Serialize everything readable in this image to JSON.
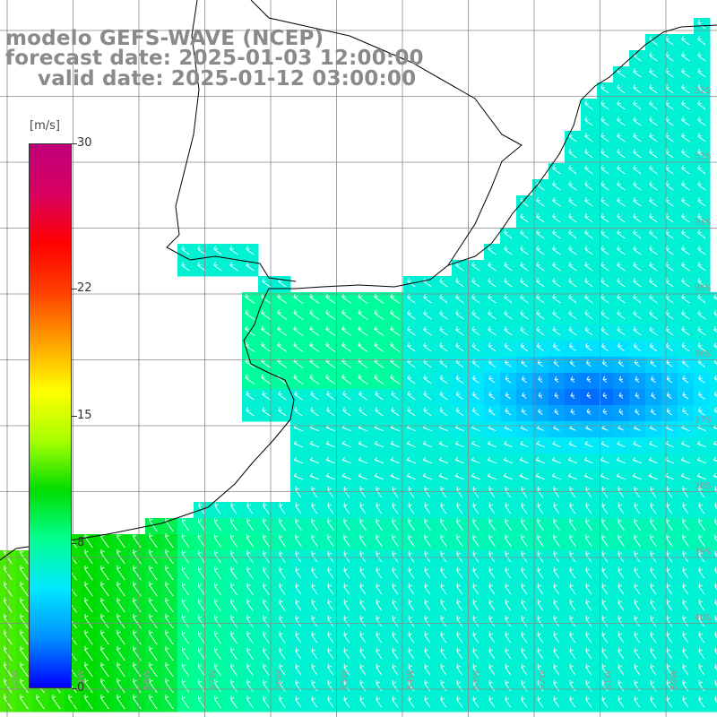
{
  "title": {
    "line1": "modelo GEFS-WAVE (NCEP)",
    "line2": "forecast date: 2025-01-03 12:00:00",
    "line3": "valid date: 2025-01-12 03:00:00"
  },
  "colorbar": {
    "unit": "[m/s]",
    "ticks": [
      "30",
      "22",
      "15",
      "8",
      "0"
    ],
    "tick_values": [
      30,
      22,
      15,
      8,
      0
    ],
    "range": [
      0,
      30
    ],
    "colors": [
      "#0000ff",
      "#0090ff",
      "#00e8ff",
      "#00ff90",
      "#00dd00",
      "#a8ff00",
      "#ffff00",
      "#ffa000",
      "#ff4000",
      "#ff0000",
      "#d80060",
      "#c0007a"
    ]
  },
  "map": {
    "lat_labels": [
      "32S",
      "33S",
      "34S",
      "35S",
      "36S",
      "37S",
      "38S",
      "39S",
      "40S"
    ],
    "lon_labels": [
      "60W",
      "59W",
      "58W",
      "57W",
      "56W",
      "55W",
      "54W",
      "53W",
      "52W",
      "51W",
      "50W"
    ],
    "land_color": "#ffffff",
    "grid_color": "#888888",
    "coast_color": "#000000"
  }
}
